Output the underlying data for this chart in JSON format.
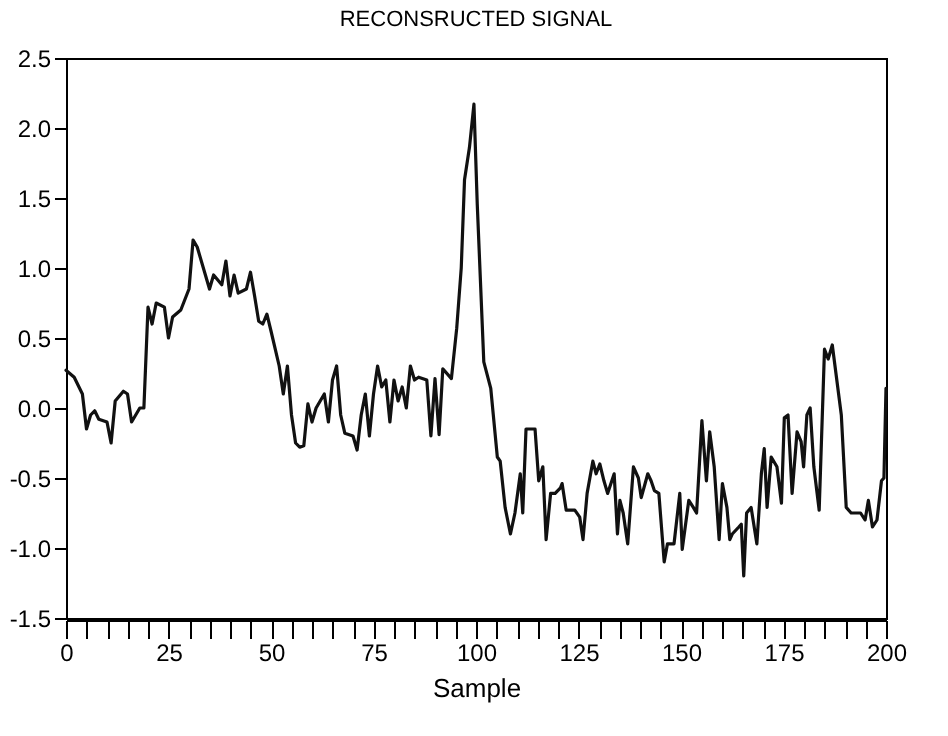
{
  "chart_data": {
    "type": "line",
    "title": "RECONSRUCTED SIGNAL",
    "xlabel": "Sample",
    "x": [
      0,
      2,
      4,
      5,
      6,
      7,
      8,
      10,
      11,
      12,
      14,
      15,
      16,
      18,
      19,
      20,
      21,
      22,
      24,
      25,
      26,
      28,
      30,
      31,
      32,
      34,
      35,
      36,
      38,
      39,
      40,
      41,
      42,
      44,
      45,
      46,
      47,
      48,
      49,
      50,
      52,
      53,
      54,
      55,
      56,
      57,
      58,
      59,
      60,
      61,
      63,
      64,
      65,
      66,
      67,
      68,
      70,
      71,
      72,
      73,
      74,
      75,
      76,
      77,
      78,
      79,
      80,
      81,
      82,
      83,
      84,
      85,
      86,
      88,
      89,
      90,
      91,
      91.9,
      94,
      95.3,
      96.4,
      97.2,
      98.4,
      99.5,
      100.3,
      101.9,
      103.6,
      105.2,
      105.9,
      107.1,
      108.4,
      109.5,
      110.8,
      111.4,
      112.2,
      114.4,
      115.3,
      116.3,
      117.1,
      118.2,
      119.3,
      120.6,
      121,
      122,
      124.1,
      125.3,
      126.1,
      127.1,
      128.5,
      129.3,
      130.2,
      131.2,
      132.1,
      133.7,
      134.5,
      135.1,
      135.9,
      137,
      138.4,
      139.6,
      140.3,
      141.9,
      142.7,
      143.5,
      144.6,
      145.9,
      146.7,
      148.3,
      149.7,
      150.3,
      151.9,
      153,
      153.8,
      155.1,
      156.2,
      157,
      158.1,
      159.3,
      160.1,
      161.2,
      161.9,
      162.5,
      164.1,
      164.7,
      165.3,
      166,
      167.1,
      168.5,
      169.6,
      170.3,
      171,
      172,
      173.4,
      174.5,
      175.2,
      176.1,
      177.1,
      178.3,
      179.3,
      179.9,
      180.7,
      181.5,
      182.4,
      183.7,
      185,
      185.9,
      186.9,
      189.1,
      190.3,
      191.5,
      193.8,
      194.9,
      195.7,
      196.7,
      197.8,
      198.9,
      199.5,
      200
    ],
    "series": [
      {
        "color": "#111111",
        "values": [
          0.27,
          0.22,
          0.1,
          -0.15,
          -0.05,
          -0.02,
          -0.08,
          -0.1,
          -0.25,
          0.05,
          0.12,
          0.1,
          -0.1,
          0.0,
          0.0,
          0.72,
          0.6,
          0.75,
          0.72,
          0.5,
          0.65,
          0.7,
          0.85,
          1.2,
          1.15,
          0.95,
          0.85,
          0.95,
          0.88,
          1.05,
          0.8,
          0.95,
          0.82,
          0.85,
          0.97,
          0.8,
          0.62,
          0.6,
          0.67,
          0.55,
          0.3,
          0.1,
          0.3,
          -0.05,
          -0.25,
          -0.28,
          -0.27,
          0.03,
          -0.1,
          0.0,
          0.1,
          -0.1,
          0.2,
          0.3,
          -0.05,
          -0.18,
          -0.2,
          -0.3,
          -0.05,
          0.1,
          -0.2,
          0.1,
          0.3,
          0.15,
          0.2,
          -0.1,
          0.2,
          0.05,
          0.15,
          0.0,
          0.3,
          0.2,
          0.22,
          0.2,
          -0.2,
          0.21,
          -0.19,
          0.28,
          0.21,
          0.57,
          1.0,
          1.63,
          1.86,
          2.17,
          1.46,
          0.33,
          0.14,
          -0.35,
          -0.38,
          -0.71,
          -0.9,
          -0.75,
          -0.47,
          -0.75,
          -0.15,
          -0.15,
          -0.52,
          -0.42,
          -0.94,
          -0.61,
          -0.61,
          -0.57,
          -0.54,
          -0.73,
          -0.73,
          -0.78,
          -0.94,
          -0.61,
          -0.38,
          -0.47,
          -0.4,
          -0.52,
          -0.61,
          -0.47,
          -0.9,
          -0.66,
          -0.75,
          -0.97,
          -0.42,
          -0.5,
          -0.64,
          -0.47,
          -0.52,
          -0.59,
          -0.61,
          -1.1,
          -0.97,
          -0.97,
          -0.61,
          -1.01,
          -0.66,
          -0.71,
          -0.75,
          -0.09,
          -0.52,
          -0.17,
          -0.42,
          -0.94,
          -0.54,
          -0.71,
          -0.94,
          -0.9,
          -0.85,
          -0.83,
          -1.2,
          -0.75,
          -0.71,
          -0.97,
          -0.47,
          -0.29,
          -0.71,
          -0.35,
          -0.42,
          -0.68,
          -0.07,
          -0.05,
          -0.61,
          -0.17,
          -0.24,
          -0.42,
          -0.05,
          0.0,
          -0.42,
          -0.73,
          0.42,
          0.35,
          0.45,
          -0.05,
          -0.71,
          -0.75,
          -0.75,
          -0.8,
          -0.66,
          -0.85,
          -0.8,
          -0.52,
          -0.5,
          0.14
        ]
      }
    ],
    "xlim": [
      0,
      200
    ],
    "xticks": [
      0,
      {
        "value": 5,
        "label": null
      },
      {
        "value": 10,
        "label": null
      },
      {
        "value": 15,
        "label": null
      },
      {
        "value": 20,
        "label": null
      },
      25,
      {
        "value": 30,
        "label": null
      },
      {
        "value": 35,
        "label": null
      },
      {
        "value": 40,
        "label": null
      },
      {
        "value": 45,
        "label": null
      },
      50,
      {
        "value": 55,
        "label": null
      },
      {
        "value": 60,
        "label": null
      },
      {
        "value": 65,
        "label": null
      },
      {
        "value": 70,
        "label": null
      },
      75,
      {
        "value": 80,
        "label": null
      },
      {
        "value": 85,
        "label": null
      },
      {
        "value": 90,
        "label": null
      },
      {
        "value": 95,
        "label": null
      },
      100,
      {
        "value": 105,
        "label": null
      },
      {
        "value": 110,
        "label": null
      },
      {
        "value": 115,
        "label": null
      },
      {
        "value": 120,
        "label": null
      },
      125,
      {
        "value": 130,
        "label": null
      },
      {
        "value": 135,
        "label": null
      },
      {
        "value": 140,
        "label": null
      },
      {
        "value": 145,
        "label": null
      },
      150,
      {
        "value": 155,
        "label": null
      },
      {
        "value": 160,
        "label": null
      },
      {
        "value": 165,
        "label": null
      },
      {
        "value": 170,
        "label": null
      },
      175,
      {
        "value": 180,
        "label": null
      },
      {
        "value": 185,
        "label": null
      },
      {
        "value": 190,
        "label": null
      },
      {
        "value": 195,
        "label": null
      },
      200
    ],
    "ylim": [
      -1.5,
      2.5
    ],
    "yticks": [
      {
        "value": -1.5,
        "label": "-1.5"
      },
      {
        "value": -1,
        "label": "-1.0"
      },
      {
        "value": -0.5,
        "label": "-0.5"
      },
      {
        "value": 0,
        "label": "0.0"
      },
      {
        "value": 0.5,
        "label": "0.5"
      },
      {
        "value": 1,
        "label": "1.0"
      },
      {
        "value": 1.5,
        "label": "1.5"
      },
      {
        "value": 2,
        "label": "2.0"
      },
      {
        "value": 2.5,
        "label": "2.5"
      }
    ],
    "grid": false,
    "marker": "none",
    "line_style": "solid"
  }
}
